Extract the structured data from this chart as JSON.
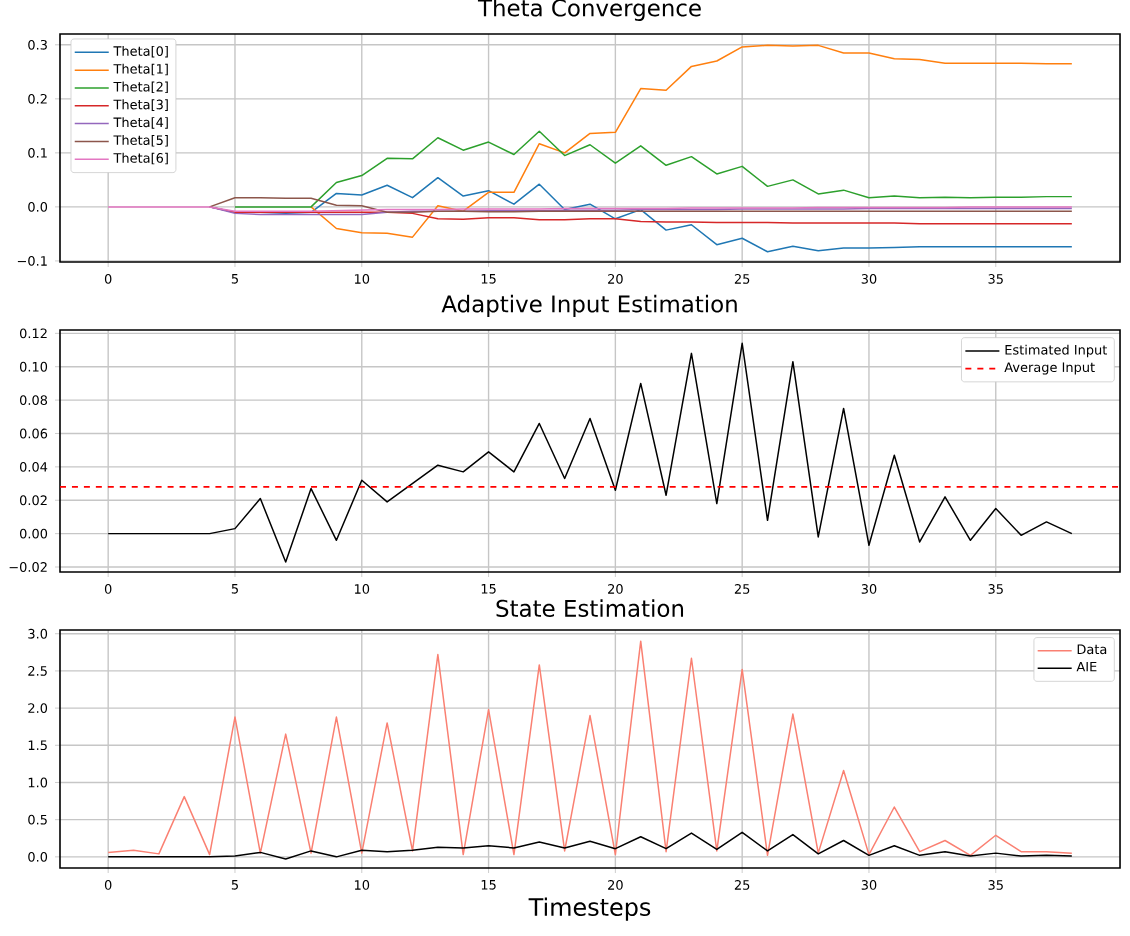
{
  "chart_data": [
    {
      "type": "line",
      "title": "Theta Convergence",
      "x": [
        0,
        1,
        2,
        3,
        4,
        5,
        6,
        7,
        8,
        9,
        10,
        11,
        12,
        13,
        14,
        15,
        16,
        17,
        18,
        19,
        20,
        21,
        22,
        23,
        24,
        25,
        26,
        27,
        28,
        29,
        30,
        31,
        32,
        33,
        34,
        35,
        36,
        37,
        38
      ],
      "xlim": [
        -1.9,
        39.9
      ],
      "xticks": [
        0,
        5,
        10,
        15,
        20,
        25,
        30,
        35
      ],
      "ylim": [
        -0.102,
        0.32
      ],
      "yticks": [
        {
          "value": -0.1,
          "label": "−0.1"
        },
        {
          "value": 0,
          "label": "0.0"
        },
        {
          "value": 0.1,
          "label": "0.1"
        },
        {
          "value": 0.2,
          "label": "0.2"
        },
        {
          "value": 0.3,
          "label": "0.3"
        }
      ],
      "grid": true,
      "legend": "top left",
      "series": [
        {
          "name": "Theta[0]",
          "color": "#1f77b4",
          "values": [
            null,
            null,
            null,
            null,
            0,
            -0.01,
            -0.01,
            -0.012,
            -0.01,
            0.025,
            0.022,
            0.04,
            0.017,
            0.054,
            0.02,
            0.03,
            0.005,
            0.042,
            -0.005,
            0.005,
            -0.022,
            -0.005,
            -0.043,
            -0.033,
            -0.07,
            -0.058,
            -0.083,
            -0.073,
            -0.081,
            -0.076,
            -0.076,
            -0.075,
            -0.074,
            -0.074,
            -0.074,
            -0.074,
            -0.074,
            -0.074,
            -0.074
          ]
        },
        {
          "name": "Theta[1]",
          "color": "#ff7f0e",
          "values": [
            null,
            null,
            null,
            null,
            null,
            null,
            null,
            null,
            0,
            -0.04,
            -0.048,
            -0.049,
            -0.056,
            0.002,
            -0.008,
            0.027,
            0.027,
            0.117,
            0.1,
            0.136,
            0.138,
            0.219,
            0.216,
            0.26,
            0.27,
            0.296,
            0.299,
            0.298,
            0.299,
            0.285,
            0.285,
            0.274,
            0.273,
            0.266,
            0.266,
            0.266,
            0.266,
            0.265,
            0.265
          ]
        },
        {
          "name": "Theta[2]",
          "color": "#2ca02c",
          "values": [
            null,
            null,
            null,
            null,
            null,
            0,
            0,
            0,
            0,
            0.045,
            0.058,
            0.09,
            0.089,
            0.128,
            0.105,
            0.12,
            0.097,
            0.14,
            0.095,
            0.115,
            0.081,
            0.113,
            0.077,
            0.093,
            0.061,
            0.075,
            0.038,
            0.05,
            0.024,
            0.031,
            0.017,
            0.02,
            0.017,
            0.018,
            0.017,
            0.018,
            0.018,
            0.019,
            0.019
          ]
        },
        {
          "name": "Theta[3]",
          "color": "#d62728",
          "values": [
            null,
            null,
            null,
            null,
            0,
            -0.01,
            -0.01,
            -0.01,
            -0.01,
            -0.01,
            -0.01,
            -0.01,
            -0.012,
            -0.022,
            -0.023,
            -0.02,
            -0.02,
            -0.024,
            -0.024,
            -0.022,
            -0.022,
            -0.027,
            -0.028,
            -0.028,
            -0.029,
            -0.029,
            -0.029,
            -0.03,
            -0.03,
            -0.03,
            -0.03,
            -0.03,
            -0.031,
            -0.031,
            -0.031,
            -0.031,
            -0.031,
            -0.031,
            -0.031
          ]
        },
        {
          "name": "Theta[4]",
          "color": "#9467bd",
          "values": [
            null,
            null,
            null,
            null,
            0,
            -0.012,
            -0.014,
            -0.014,
            -0.014,
            -0.014,
            -0.014,
            -0.01,
            -0.008,
            -0.008,
            -0.008,
            -0.007,
            -0.007,
            -0.007,
            -0.006,
            -0.006,
            -0.006,
            -0.005,
            -0.005,
            -0.005,
            -0.005,
            -0.004,
            -0.004,
            -0.004,
            -0.004,
            -0.004,
            -0.003,
            -0.003,
            -0.003,
            -0.003,
            -0.003,
            -0.003,
            -0.003,
            -0.003,
            -0.003
          ]
        },
        {
          "name": "Theta[5]",
          "color": "#8c564b",
          "values": [
            null,
            null,
            null,
            null,
            0,
            0.017,
            0.017,
            0.016,
            0.016,
            0.003,
            0.002,
            -0.01,
            -0.01,
            -0.008,
            -0.008,
            -0.009,
            -0.009,
            -0.008,
            -0.008,
            -0.008,
            -0.008,
            -0.008,
            -0.008,
            -0.008,
            -0.008,
            -0.008,
            -0.008,
            -0.008,
            -0.008,
            -0.008,
            -0.008,
            -0.008,
            -0.008,
            -0.008,
            -0.008,
            -0.008,
            -0.008,
            -0.008,
            -0.008
          ]
        },
        {
          "name": "Theta[6]",
          "color": "#e377c2",
          "values": [
            0,
            0,
            0,
            0,
            0,
            -0.008,
            -0.008,
            -0.008,
            -0.008,
            -0.007,
            -0.006,
            -0.005,
            -0.005,
            -0.005,
            -0.004,
            -0.004,
            -0.004,
            -0.004,
            -0.003,
            -0.003,
            -0.003,
            -0.003,
            -0.003,
            -0.002,
            -0.002,
            -0.002,
            -0.002,
            -0.002,
            -0.001,
            -0.001,
            -0.001,
            -0.001,
            -0.001,
            -0.001,
            0,
            0,
            0,
            0,
            0
          ]
        }
      ]
    },
    {
      "type": "line",
      "title": "Adaptive Input Estimation",
      "x": [
        0,
        1,
        2,
        3,
        4,
        5,
        6,
        7,
        8,
        9,
        10,
        11,
        12,
        13,
        14,
        15,
        16,
        17,
        18,
        19,
        20,
        21,
        22,
        23,
        24,
        25,
        26,
        27,
        28,
        29,
        30,
        31,
        32,
        33,
        34,
        35,
        36,
        37,
        38
      ],
      "xlim": [
        -1.9,
        39.9
      ],
      "xticks": [
        0,
        5,
        10,
        15,
        20,
        25,
        30,
        35
      ],
      "ylim": [
        -0.023,
        0.122
      ],
      "yticks": [
        {
          "value": -0.02,
          "label": "−0.02"
        },
        {
          "value": 0,
          "label": "0.00"
        },
        {
          "value": 0.02,
          "label": "0.02"
        },
        {
          "value": 0.04,
          "label": "0.04"
        },
        {
          "value": 0.06,
          "label": "0.06"
        },
        {
          "value": 0.08,
          "label": "0.08"
        },
        {
          "value": 0.1,
          "label": "0.10"
        },
        {
          "value": 0.12,
          "label": "0.12"
        }
      ],
      "grid": true,
      "legend": "top right",
      "series": [
        {
          "name": "Estimated Input",
          "color": "#000000",
          "values": [
            0,
            0,
            0,
            0,
            0,
            0.003,
            0.021,
            -0.017,
            0.027,
            -0.004,
            0.032,
            0.019,
            0.03,
            0.041,
            0.037,
            0.049,
            0.037,
            0.066,
            0.033,
            0.069,
            0.026,
            0.09,
            0.023,
            0.108,
            0.018,
            0.114,
            0.008,
            0.103,
            -0.002,
            0.075,
            -0.007,
            0.047,
            -0.005,
            0.022,
            -0.004,
            0.015,
            -0.001,
            0.007,
            0
          ]
        }
      ],
      "ref_lines": [
        {
          "axis": "y",
          "value": 0.028,
          "label": "Average Input",
          "color": "#ff0000",
          "line_style": "dashed"
        }
      ]
    },
    {
      "type": "line",
      "title": "State Estimation",
      "xlabel": "Timesteps",
      "x": [
        0,
        1,
        2,
        3,
        4,
        5,
        6,
        7,
        8,
        9,
        10,
        11,
        12,
        13,
        14,
        15,
        16,
        17,
        18,
        19,
        20,
        21,
        22,
        23,
        24,
        25,
        26,
        27,
        28,
        29,
        30,
        31,
        32,
        33,
        34,
        35,
        36,
        37,
        38
      ],
      "xlim": [
        -1.9,
        39.9
      ],
      "xticks": [
        0,
        5,
        10,
        15,
        20,
        25,
        30,
        35
      ],
      "ylim": [
        -0.15,
        3.05
      ],
      "yticks": [
        {
          "value": 0,
          "label": "0.0"
        },
        {
          "value": 0.5,
          "label": "0.5"
        },
        {
          "value": 1,
          "label": "1.0"
        },
        {
          "value": 1.5,
          "label": "1.5"
        },
        {
          "value": 2,
          "label": "2.0"
        },
        {
          "value": 2.5,
          "label": "2.5"
        },
        {
          "value": 3,
          "label": "3.0"
        }
      ],
      "grid": true,
      "legend": "top right",
      "series": [
        {
          "name": "Data",
          "color": "#fa8072",
          "values": [
            0.06,
            0.09,
            0.04,
            0.81,
            0.03,
            1.88,
            0.05,
            1.65,
            0.05,
            1.88,
            0.05,
            1.8,
            0.08,
            2.72,
            0.03,
            1.98,
            0.03,
            2.58,
            0.08,
            1.9,
            0.03,
            2.9,
            0.07,
            2.67,
            0.08,
            2.52,
            0.02,
            1.92,
            0.05,
            1.16,
            0.03,
            0.67,
            0.07,
            0.22,
            0.02,
            0.29,
            0.07,
            0.07,
            0.05
          ]
        },
        {
          "name": "AIE",
          "color": "#000000",
          "values": [
            0,
            0,
            0,
            0,
            0,
            0.01,
            0.06,
            -0.03,
            0.08,
            0,
            0.09,
            0.07,
            0.09,
            0.13,
            0.12,
            0.15,
            0.12,
            0.2,
            0.12,
            0.21,
            0.11,
            0.27,
            0.11,
            0.32,
            0.1,
            0.33,
            0.08,
            0.3,
            0.04,
            0.22,
            0.02,
            0.15,
            0.02,
            0.07,
            0.01,
            0.05,
            0.01,
            0.02,
            0.01
          ]
        }
      ]
    }
  ]
}
